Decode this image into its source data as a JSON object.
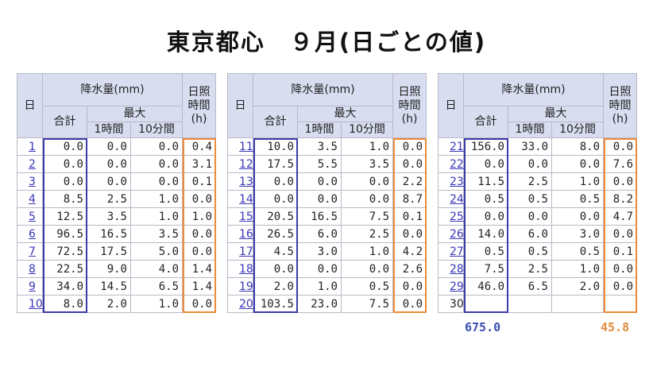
{
  "title": "東京都心　９月(日ごとの値)",
  "headers": {
    "day": "日",
    "rain": "降水量(mm)",
    "total": "合計",
    "max": "最大",
    "h1": "1時間",
    "m10": "10分間",
    "sun_l1": "日照",
    "sun_l2": "時間",
    "sun_l3": "(h)"
  },
  "tables": [
    {
      "rows": [
        {
          "day": "1",
          "total": "0.0",
          "h1": "0.0",
          "m10": "0.0",
          "sun": "0.4"
        },
        {
          "day": "2",
          "total": "0.0",
          "h1": "0.0",
          "m10": "0.0",
          "sun": "3.1"
        },
        {
          "day": "3",
          "total": "0.0",
          "h1": "0.0",
          "m10": "0.0",
          "sun": "0.1"
        },
        {
          "day": "4",
          "total": "8.5",
          "h1": "2.5",
          "m10": "1.0",
          "sun": "0.0"
        },
        {
          "day": "5",
          "total": "12.5",
          "h1": "3.5",
          "m10": "1.0",
          "sun": "1.0"
        },
        {
          "day": "6",
          "total": "96.5",
          "h1": "16.5",
          "m10": "3.5",
          "sun": "0.0"
        },
        {
          "day": "7",
          "total": "72.5",
          "h1": "17.5",
          "m10": "5.0",
          "sun": "0.0"
        },
        {
          "day": "8",
          "total": "22.5",
          "h1": "9.0",
          "m10": "4.0",
          "sun": "1.4"
        },
        {
          "day": "9",
          "total": "34.0",
          "h1": "14.5",
          "m10": "6.5",
          "sun": "1.4"
        },
        {
          "day": "10",
          "total": "8.0",
          "h1": "2.0",
          "m10": "1.0",
          "sun": "0.0"
        }
      ]
    },
    {
      "rows": [
        {
          "day": "11",
          "total": "10.0",
          "h1": "3.5",
          "m10": "1.0",
          "sun": "0.0"
        },
        {
          "day": "12",
          "total": "17.5",
          "h1": "5.5",
          "m10": "3.5",
          "sun": "0.0"
        },
        {
          "day": "13",
          "total": "0.0",
          "h1": "0.0",
          "m10": "0.0",
          "sun": "2.2"
        },
        {
          "day": "14",
          "total": "0.0",
          "h1": "0.0",
          "m10": "0.0",
          "sun": "8.7"
        },
        {
          "day": "15",
          "total": "20.5",
          "h1": "16.5",
          "m10": "7.5",
          "sun": "0.1"
        },
        {
          "day": "16",
          "total": "26.5",
          "h1": "6.0",
          "m10": "2.5",
          "sun": "0.0"
        },
        {
          "day": "17",
          "total": "4.5",
          "h1": "3.0",
          "m10": "1.0",
          "sun": "4.2"
        },
        {
          "day": "18",
          "total": "0.0",
          "h1": "0.0",
          "m10": "0.0",
          "sun": "2.6"
        },
        {
          "day": "19",
          "total": "2.0",
          "h1": "1.0",
          "m10": "0.5",
          "sun": "0.0"
        },
        {
          "day": "20",
          "total": "103.5",
          "h1": "23.0",
          "m10": "7.5",
          "sun": "0.0"
        }
      ]
    },
    {
      "rows": [
        {
          "day": "21",
          "total": "156.0",
          "h1": "33.0",
          "m10": "8.0",
          "sun": "0.0"
        },
        {
          "day": "22",
          "total": "0.0",
          "h1": "0.0",
          "m10": "0.0",
          "sun": "7.6"
        },
        {
          "day": "23",
          "total": "11.5",
          "h1": "2.5",
          "m10": "1.0",
          "sun": "0.0"
        },
        {
          "day": "24",
          "total": "0.5",
          "h1": "0.5",
          "m10": "0.5",
          "sun": "8.2"
        },
        {
          "day": "25",
          "total": "0.0",
          "h1": "0.0",
          "m10": "0.0",
          "sun": "4.7"
        },
        {
          "day": "26",
          "total": "14.0",
          "h1": "6.0",
          "m10": "3.0",
          "sun": "0.0"
        },
        {
          "day": "27",
          "total": "0.5",
          "h1": "0.5",
          "m10": "0.5",
          "sun": "0.1"
        },
        {
          "day": "28",
          "total": "7.5",
          "h1": "2.5",
          "m10": "1.0",
          "sun": "0.0"
        },
        {
          "day": "29",
          "total": "46.0",
          "h1": "6.5",
          "m10": "2.0",
          "sun": "0.0"
        },
        {
          "day": "30",
          "total": "",
          "h1": "",
          "m10": "",
          "sun": "",
          "link": false
        }
      ]
    }
  ],
  "totals": {
    "rain": "675.0",
    "sun": "45.8"
  },
  "colors": {
    "header_bg": "#d8ddf0",
    "rain_box": "#3c3ca8",
    "sun_box": "#ee8c3a",
    "link": "#3a36b8"
  }
}
